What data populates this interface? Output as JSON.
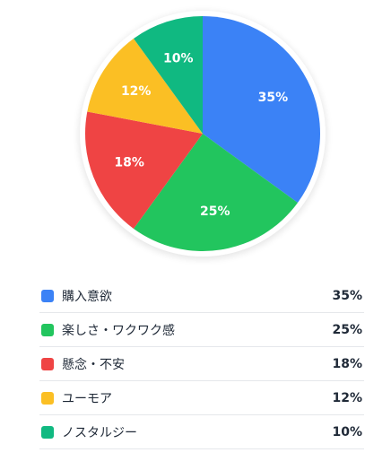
{
  "chart_data": {
    "type": "pie",
    "unit": "%",
    "categories": [
      "購入意欲",
      "楽しさ・ワクワク感",
      "懸念・不安",
      "ユーモア",
      "ノスタルジー"
    ],
    "values": [
      35,
      25,
      18,
      12,
      10
    ],
    "value_labels": [
      "35%",
      "25%",
      "18%",
      "12%",
      "10%"
    ],
    "colors": [
      "#3b82f6",
      "#22c55e",
      "#ef4444",
      "#fbbf24",
      "#10b981"
    ],
    "start_angle": "12-o'clock",
    "direction": "clockwise",
    "legend_position": "bottom"
  }
}
